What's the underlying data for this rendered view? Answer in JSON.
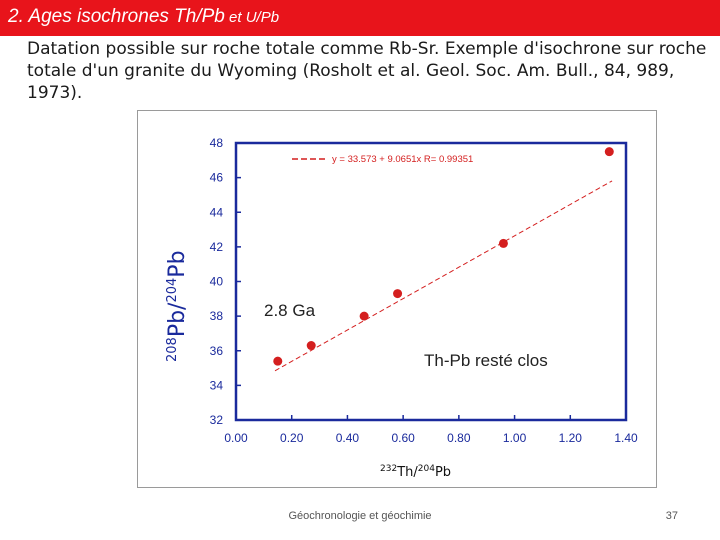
{
  "slide": {
    "title_main": "2. Ages isochrones Th/Pb",
    "title_suffix": " et U/Pb",
    "body": "Datation possible sur roche totale comme Rb-Sr. Exemple d'isochrone sur roche totale d'un granite du Wyoming (Rosholt et al. Geol. Soc. Am. Bull., 84, 989, 1973).",
    "footer": "Géochronologie et géochimie",
    "page_number": "37"
  },
  "colors": {
    "title_bar": "#e8141b",
    "axis": "#1a2a9c",
    "points": "#d41f1f",
    "fit_line": "#d41f1f"
  },
  "chart_data": {
    "type": "scatter",
    "x": [
      0.15,
      0.27,
      0.46,
      0.58,
      0.96,
      1.34
    ],
    "y": [
      35.4,
      36.3,
      38.0,
      39.3,
      42.2,
      47.5
    ],
    "fit": {
      "intercept": 33.573,
      "slope": 9.0651
    },
    "xlim": [
      0,
      1.4
    ],
    "ylim": [
      32,
      48
    ],
    "xticks": [
      "0.00",
      "0.20",
      "0.40",
      "0.60",
      "0.80",
      "1.00",
      "1.20",
      "1.40"
    ],
    "yticks": [
      "32",
      "34",
      "36",
      "38",
      "40",
      "42",
      "44",
      "46",
      "48"
    ],
    "ylabel": {
      "sup1": "208",
      "base1": "Pb/",
      "sup2": "204",
      "base2": "Pb"
    },
    "xlabel": {
      "sup1": "232",
      "base1": "Th/",
      "sup2": "204",
      "base2": "Pb"
    },
    "legend_text": "y = 33.573 + 9.0651x R= 0.99351",
    "annotation_age": "2.8 Ga",
    "annotation_closed": "Th-Pb resté clos"
  }
}
